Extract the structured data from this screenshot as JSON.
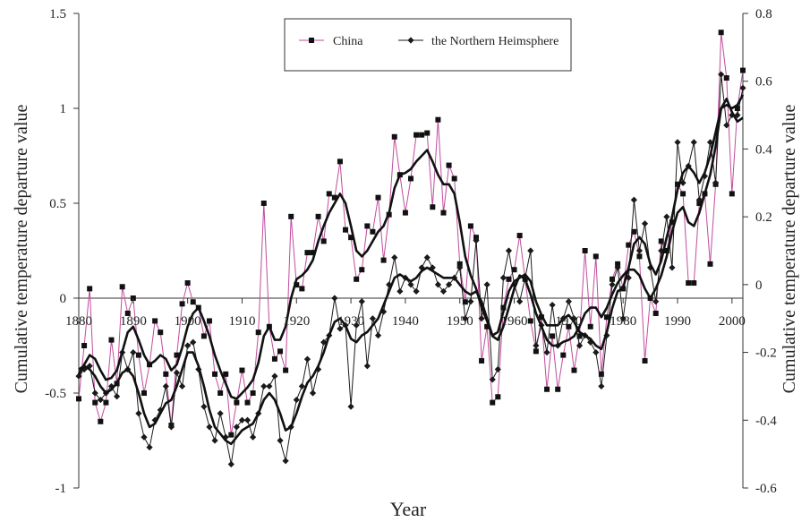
{
  "chart_data": {
    "type": "line",
    "x": [
      1880,
      1881,
      1882,
      1883,
      1884,
      1885,
      1886,
      1887,
      1888,
      1889,
      1890,
      1891,
      1892,
      1893,
      1894,
      1895,
      1896,
      1897,
      1898,
      1899,
      1900,
      1901,
      1902,
      1903,
      1904,
      1905,
      1906,
      1907,
      1908,
      1909,
      1910,
      1911,
      1912,
      1913,
      1914,
      1915,
      1916,
      1917,
      1918,
      1919,
      1920,
      1921,
      1922,
      1923,
      1924,
      1925,
      1926,
      1927,
      1928,
      1929,
      1930,
      1931,
      1932,
      1933,
      1934,
      1935,
      1936,
      1937,
      1938,
      1939,
      1940,
      1941,
      1942,
      1943,
      1944,
      1945,
      1946,
      1947,
      1948,
      1949,
      1950,
      1951,
      1952,
      1953,
      1954,
      1955,
      1956,
      1957,
      1958,
      1959,
      1960,
      1961,
      1962,
      1963,
      1964,
      1965,
      1966,
      1967,
      1968,
      1969,
      1970,
      1971,
      1972,
      1973,
      1974,
      1975,
      1976,
      1977,
      1978,
      1979,
      1980,
      1981,
      1982,
      1983,
      1984,
      1985,
      1986,
      1987,
      1988,
      1989,
      1990,
      1991,
      1992,
      1993,
      1994,
      1995,
      1996,
      1997,
      1998,
      1999,
      2000,
      2001,
      2002
    ],
    "series": [
      {
        "name": "China",
        "axis": "left",
        "color": "#c24b9e",
        "marker": "square",
        "values": [
          -0.53,
          -0.25,
          0.05,
          -0.55,
          -0.65,
          -0.55,
          -0.22,
          -0.45,
          0.06,
          -0.08,
          0.0,
          -0.3,
          -0.5,
          -0.35,
          -0.12,
          -0.18,
          -0.4,
          -0.67,
          -0.3,
          -0.03,
          0.08,
          -0.02,
          -0.05,
          -0.2,
          -0.12,
          -0.4,
          -0.5,
          -0.4,
          -0.72,
          -0.55,
          -0.38,
          -0.55,
          -0.5,
          -0.18,
          0.5,
          -0.15,
          -0.32,
          -0.28,
          -0.38,
          0.43,
          0.07,
          0.05,
          0.24,
          0.24,
          0.43,
          0.3,
          0.55,
          0.53,
          0.72,
          0.36,
          0.32,
          0.1,
          0.15,
          0.38,
          0.35,
          0.53,
          0.2,
          0.44,
          0.85,
          0.65,
          0.45,
          0.63,
          0.86,
          0.86,
          0.87,
          0.48,
          0.94,
          0.45,
          0.7,
          0.63,
          0.18,
          -0.02,
          0.38,
          0.32,
          -0.33,
          -0.15,
          -0.55,
          -0.52,
          -0.05,
          0.1,
          0.15,
          0.33,
          0.1,
          -0.12,
          -0.28,
          -0.1,
          -0.48,
          -0.2,
          -0.48,
          -0.3,
          -0.15,
          -0.38,
          -0.2,
          0.25,
          -0.15,
          0.22,
          -0.4,
          -0.1,
          0.1,
          0.18,
          0.05,
          0.28,
          0.35,
          0.22,
          -0.33,
          0.0,
          -0.08,
          0.3,
          0.25,
          0.4,
          0.6,
          0.55,
          0.08,
          0.08,
          0.5,
          0.55,
          0.18,
          0.6,
          1.4,
          1.16,
          0.55,
          1.0,
          1.2
        ]
      },
      {
        "name": "the Northern Heimsphere",
        "axis": "right",
        "color": "#1a1a1a",
        "marker": "diamond",
        "values": [
          -0.27,
          -0.25,
          -0.24,
          -0.32,
          -0.34,
          -0.32,
          -0.3,
          -0.33,
          -0.2,
          -0.25,
          -0.2,
          -0.38,
          -0.45,
          -0.48,
          -0.4,
          -0.37,
          -0.3,
          -0.42,
          -0.26,
          -0.3,
          -0.18,
          -0.17,
          -0.25,
          -0.36,
          -0.42,
          -0.46,
          -0.38,
          -0.45,
          -0.53,
          -0.42,
          -0.4,
          -0.4,
          -0.45,
          -0.38,
          -0.3,
          -0.3,
          -0.27,
          -0.46,
          -0.52,
          -0.42,
          -0.34,
          -0.3,
          -0.22,
          -0.32,
          -0.25,
          -0.17,
          -0.15,
          -0.04,
          -0.13,
          -0.12,
          -0.36,
          -0.12,
          -0.05,
          -0.24,
          -0.1,
          -0.15,
          -0.08,
          0.0,
          0.08,
          -0.02,
          0.02,
          0.0,
          -0.02,
          0.05,
          0.08,
          0.05,
          0.0,
          -0.02,
          0.0,
          0.02,
          0.05,
          -0.1,
          -0.05,
          0.13,
          -0.1,
          0.0,
          -0.28,
          -0.25,
          0.02,
          0.1,
          0.0,
          -0.05,
          0.02,
          0.1,
          -0.18,
          -0.12,
          -0.2,
          -0.06,
          -0.18,
          -0.1,
          -0.05,
          -0.1,
          -0.18,
          -0.15,
          -0.17,
          -0.2,
          -0.3,
          -0.15,
          0.0,
          0.05,
          -0.1,
          0.02,
          0.25,
          0.1,
          0.18,
          0.05,
          -0.05,
          0.1,
          0.2,
          0.05,
          0.42,
          0.3,
          0.35,
          0.42,
          0.25,
          0.32,
          0.42,
          0.3,
          0.62,
          0.47,
          0.5,
          0.5,
          0.58
        ]
      },
      {
        "name": "",
        "axis": "left",
        "color": "#111111",
        "marker": "none",
        "values": [
          -0.4,
          -0.35,
          -0.3,
          -0.32,
          -0.38,
          -0.43,
          -0.42,
          -0.38,
          -0.28,
          -0.18,
          -0.15,
          -0.22,
          -0.3,
          -0.35,
          -0.33,
          -0.3,
          -0.32,
          -0.38,
          -0.35,
          -0.26,
          -0.15,
          -0.08,
          -0.05,
          -0.12,
          -0.2,
          -0.3,
          -0.38,
          -0.45,
          -0.52,
          -0.53,
          -0.5,
          -0.47,
          -0.43,
          -0.34,
          -0.2,
          -0.15,
          -0.22,
          -0.22,
          -0.15,
          0.0,
          0.1,
          0.12,
          0.15,
          0.2,
          0.3,
          0.38,
          0.45,
          0.5,
          0.55,
          0.5,
          0.38,
          0.25,
          0.22,
          0.25,
          0.3,
          0.35,
          0.38,
          0.45,
          0.58,
          0.65,
          0.66,
          0.68,
          0.72,
          0.75,
          0.78,
          0.72,
          0.65,
          0.6,
          0.6,
          0.55,
          0.4,
          0.22,
          0.12,
          0.05,
          -0.05,
          -0.12,
          -0.2,
          -0.22,
          -0.15,
          -0.05,
          0.05,
          0.12,
          0.1,
          0.02,
          -0.08,
          -0.15,
          -0.22,
          -0.25,
          -0.25,
          -0.23,
          -0.22,
          -0.2,
          -0.15,
          -0.08,
          -0.05,
          -0.05,
          -0.1,
          -0.05,
          0.02,
          0.08,
          0.12,
          0.15,
          0.15,
          0.12,
          0.05,
          0.0,
          0.05,
          0.12,
          0.22,
          0.35,
          0.45,
          0.48,
          0.4,
          0.38,
          0.45,
          0.55,
          0.65,
          0.8,
          1.0,
          1.05,
          0.98,
          0.93,
          0.95
        ]
      },
      {
        "name": "",
        "axis": "right",
        "color": "#111111",
        "marker": "none",
        "values": [
          -0.25,
          -0.24,
          -0.25,
          -0.27,
          -0.3,
          -0.32,
          -0.31,
          -0.29,
          -0.26,
          -0.25,
          -0.27,
          -0.32,
          -0.38,
          -0.42,
          -0.41,
          -0.38,
          -0.35,
          -0.34,
          -0.3,
          -0.25,
          -0.2,
          -0.2,
          -0.24,
          -0.3,
          -0.37,
          -0.42,
          -0.44,
          -0.46,
          -0.47,
          -0.45,
          -0.43,
          -0.42,
          -0.41,
          -0.38,
          -0.34,
          -0.32,
          -0.34,
          -0.38,
          -0.43,
          -0.42,
          -0.38,
          -0.33,
          -0.29,
          -0.27,
          -0.24,
          -0.2,
          -0.15,
          -0.11,
          -0.1,
          -0.12,
          -0.16,
          -0.17,
          -0.15,
          -0.14,
          -0.12,
          -0.1,
          -0.06,
          -0.02,
          0.02,
          0.03,
          0.02,
          0.01,
          0.02,
          0.04,
          0.05,
          0.04,
          0.03,
          0.02,
          0.02,
          0.02,
          0.0,
          -0.02,
          -0.03,
          -0.02,
          -0.05,
          -0.1,
          -0.15,
          -0.14,
          -0.08,
          -0.02,
          0.01,
          0.02,
          0.03,
          0.01,
          -0.05,
          -0.09,
          -0.12,
          -0.12,
          -0.12,
          -0.1,
          -0.09,
          -0.11,
          -0.14,
          -0.15,
          -0.16,
          -0.18,
          -0.19,
          -0.14,
          -0.07,
          -0.02,
          -0.01,
          0.05,
          0.12,
          0.14,
          0.12,
          0.06,
          0.03,
          0.07,
          0.14,
          0.2,
          0.28,
          0.33,
          0.35,
          0.33,
          0.3,
          0.33,
          0.38,
          0.45,
          0.52,
          0.53,
          0.52,
          0.53,
          0.56
        ]
      }
    ],
    "xlabel": "Year",
    "ylabel_left": "Cumulative temperature departure value",
    "ylabel_right": "Cumulative temperature departure value",
    "ylim_left": [
      -1,
      1.5
    ],
    "ylim_right": [
      -0.6,
      0.8
    ],
    "xlim": [
      1880,
      2002
    ],
    "x_ticks": [
      1880,
      1890,
      1900,
      1910,
      1920,
      1930,
      1940,
      1950,
      1960,
      1970,
      1980,
      1990,
      2000
    ],
    "x_tick_labels": [
      "1880",
      "1890",
      "1900",
      "1910",
      "1920",
      "1930",
      "1940",
      "1950",
      "1960",
      "1970",
      "1980",
      "1990",
      "2000"
    ],
    "y_left_ticks": [
      -1,
      -0.5,
      0,
      0.5,
      1,
      1.5
    ],
    "y_left_tick_labels": [
      "-1",
      "-0.5",
      "0",
      "0.5",
      "1",
      "1.5"
    ],
    "y_right_ticks": [
      -0.6,
      -0.4,
      -0.2,
      0,
      0.2,
      0.4,
      0.6,
      0.8
    ],
    "y_right_tick_labels": [
      "-0.6",
      "-0.4",
      "-0.2",
      "0",
      "0.2",
      "0.4",
      "0.6",
      "0.8"
    ],
    "legend": [
      {
        "label": "China",
        "marker": "square",
        "color": "#c24b9e"
      },
      {
        "label": "the Northern Heimsphere",
        "marker": "diamond",
        "color": "#1a1a1a"
      }
    ],
    "legend_position": "top-center",
    "grid": false
  }
}
